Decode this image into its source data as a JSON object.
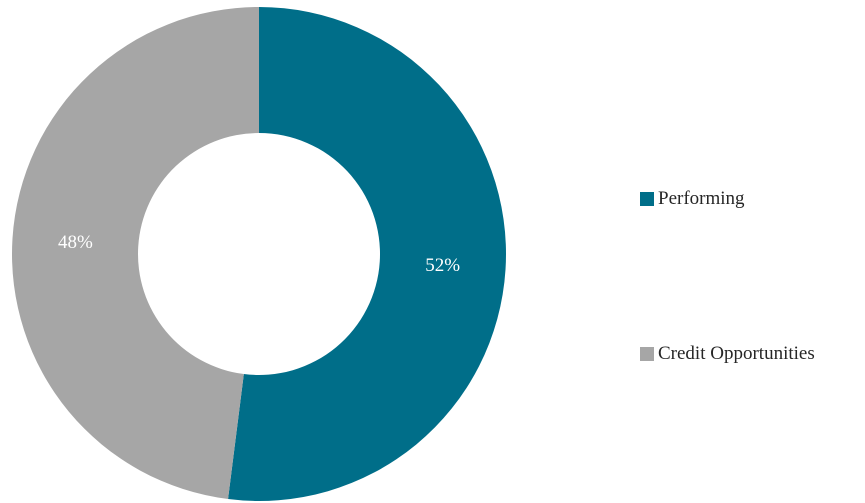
{
  "chart_data": {
    "type": "pie",
    "variant": "donut",
    "categories": [
      "Performing",
      "Credit Opportunities"
    ],
    "values": [
      52,
      48
    ],
    "data_labels": [
      "52%",
      "48%"
    ],
    "colors": [
      "#006E89",
      "#A6A6A6"
    ],
    "legend_position": "right"
  }
}
